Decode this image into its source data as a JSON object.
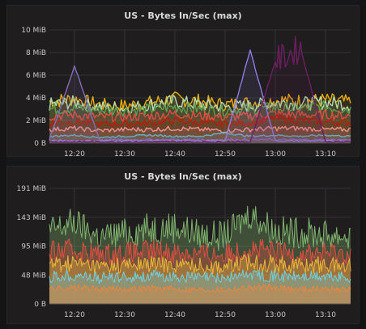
{
  "panels": [
    {
      "title": "US - Bytes In/Sec (max)"
    },
    {
      "title": "US - Bytes In/Sec (max)"
    }
  ],
  "chart_data": [
    {
      "type": "area",
      "title": "US - Bytes In/Sec (max)",
      "y_ticks": [
        "0 B",
        "2 MiB",
        "4 MiB",
        "6 MiB",
        "8 MiB",
        "10 MiB"
      ],
      "ylim": [
        0,
        10
      ],
      "x_ticks": [
        "12:20",
        "12:30",
        "12:40",
        "12:50",
        "13:00",
        "13:10"
      ],
      "xlim": [
        "12:15",
        "13:15"
      ],
      "x": [
        "12:15",
        "12:20",
        "12:25",
        "12:30",
        "12:35",
        "12:40",
        "12:45",
        "12:50",
        "12:55",
        "13:00",
        "13:05",
        "13:10",
        "13:15"
      ],
      "series": [
        {
          "values": [
            3.7,
            3.9,
            3.4,
            3.3,
            3.6,
            3.9,
            3.7,
            3.4,
            3.6,
            3.8,
            3.7,
            3.8,
            3.6
          ],
          "color": "#e5ac0e"
        },
        {
          "values": [
            3.4,
            3.6,
            3.2,
            3.1,
            3.4,
            3.7,
            3.4,
            3.2,
            3.3,
            3.6,
            3.5,
            3.6,
            3.4
          ],
          "color": "#b7dbab"
        },
        {
          "values": [
            3.0,
            3.1,
            2.9,
            2.9,
            3.0,
            3.2,
            3.0,
            2.9,
            3.0,
            3.1,
            3.1,
            3.2,
            3.0
          ],
          "color": "#629e51"
        },
        {
          "values": [
            2.4,
            2.5,
            2.3,
            2.3,
            2.4,
            2.6,
            2.4,
            2.3,
            2.4,
            2.6,
            2.5,
            2.5,
            2.4
          ],
          "color": "#e24d42"
        },
        {
          "values": [
            1.8,
            1.9,
            1.7,
            1.7,
            1.8,
            2.0,
            1.8,
            1.7,
            1.8,
            2.2,
            2.0,
            1.9,
            1.8
          ],
          "color": "#bf1b00"
        },
        {
          "values": [
            1.2,
            1.3,
            1.1,
            1.2,
            1.2,
            1.3,
            1.2,
            1.1,
            1.2,
            1.3,
            1.3,
            1.2,
            1.2
          ],
          "color": "#f29191"
        },
        {
          "values": [
            0.6,
            0.7,
            0.5,
            0.6,
            0.7,
            0.6,
            0.6,
            0.9,
            0.6,
            0.7,
            0.6,
            0.7,
            0.6
          ],
          "color": "#64b0c8"
        },
        {
          "values": [
            0.3,
            6.8,
            0.3,
            0.3,
            0.3,
            0.3,
            0.3,
            0.3,
            0.3,
            0.3,
            0.3,
            0.3,
            0.3
          ],
          "color": "#806eb7"
        },
        {
          "values": [
            0.2,
            0.2,
            0.2,
            0.2,
            0.2,
            0.2,
            0.2,
            0.2,
            8.2,
            0.2,
            0.2,
            0.2,
            0.2
          ],
          "color": "#8f7ee2"
        },
        {
          "values": [
            0.1,
            0.1,
            0.1,
            0.1,
            0.1,
            0.1,
            0.1,
            0.1,
            0.1,
            7.2,
            8.4,
            0.1,
            0.1
          ],
          "color": "#6d1f62"
        }
      ]
    },
    {
      "type": "area",
      "title": "US - Bytes In/Sec (max)",
      "y_ticks": [
        "0 B",
        "48 MiB",
        "95 MiB",
        "143 MiB",
        "191 MiB"
      ],
      "ylim": [
        0,
        191
      ],
      "x_ticks": [
        "12:20",
        "12:30",
        "12:40",
        "12:50",
        "13:00",
        "13:10"
      ],
      "xlim": [
        "12:15",
        "13:15"
      ],
      "x": [
        "12:15",
        "12:20",
        "12:25",
        "12:30",
        "12:35",
        "12:40",
        "12:45",
        "12:50",
        "12:55",
        "13:00",
        "13:05",
        "13:10",
        "13:15"
      ],
      "series": [
        {
          "name": "",
          "values": [
            120,
            135,
            110,
            118,
            125,
            128,
            115,
            112,
            150,
            120,
            118,
            115,
            112
          ],
          "color": "#7eb26d"
        },
        {
          "values": [
            85,
            90,
            82,
            84,
            88,
            86,
            83,
            82,
            92,
            86,
            84,
            85,
            83
          ],
          "color": "#e24d42"
        },
        {
          "values": [
            65,
            68,
            62,
            64,
            66,
            65,
            63,
            62,
            70,
            66,
            64,
            65,
            63
          ],
          "color": "#eab839"
        },
        {
          "values": [
            45,
            48,
            43,
            45,
            46,
            45,
            44,
            43,
            50,
            46,
            45,
            45,
            44
          ],
          "color": "#6ed0e0"
        },
        {
          "values": [
            25,
            27,
            24,
            25,
            26,
            25,
            24,
            24,
            28,
            26,
            25,
            25,
            24
          ],
          "color": "#ef843c"
        }
      ]
    }
  ]
}
